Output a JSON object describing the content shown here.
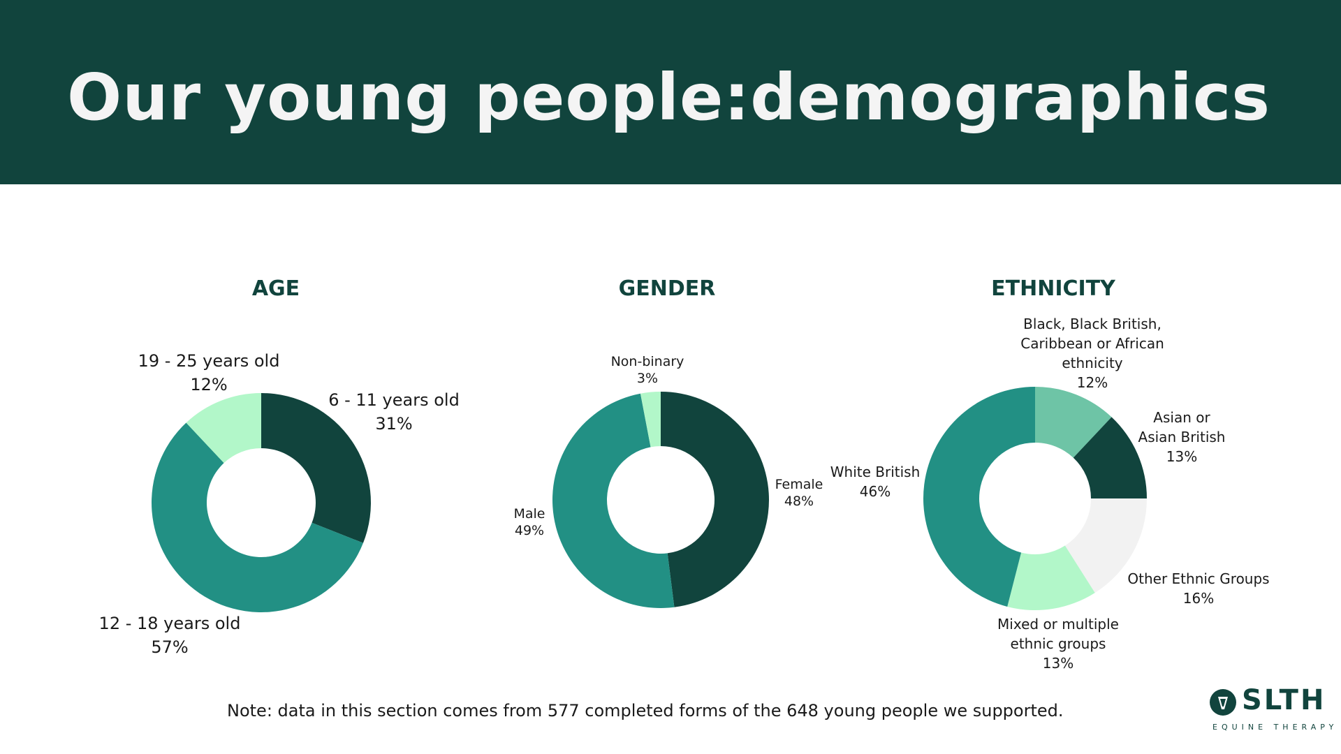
{
  "header": {
    "title": "Our young people:demographics"
  },
  "colors": {
    "header_bg": "#11443d",
    "title": "#f4f4f4",
    "dark": "#11443d",
    "teal": "#229084",
    "mint": "#b2f7c9",
    "sage": "#6ec4a6",
    "light_gray": "#f2f2f2"
  },
  "chart_data": [
    {
      "type": "pie",
      "title": "AGE",
      "slices": [
        {
          "label": "6 - 11 years old",
          "value": 31,
          "display": "31%",
          "color": "#11443d"
        },
        {
          "label": "12 - 18 years old",
          "value": 57,
          "display": "57%",
          "color": "#229084"
        },
        {
          "label": "19 - 25 years old",
          "value": 12,
          "display": "12%",
          "color": "#b2f7c9"
        }
      ]
    },
    {
      "type": "pie",
      "title": "GENDER",
      "slices": [
        {
          "label": "Female",
          "value": 48,
          "display": "48%",
          "color": "#11443d"
        },
        {
          "label": "Male",
          "value": 49,
          "display": "49%",
          "color": "#229084"
        },
        {
          "label": "Non-binary",
          "value": 3,
          "display": "3%",
          "color": "#b2f7c9"
        }
      ]
    },
    {
      "type": "pie",
      "title": "ETHNICITY",
      "slices": [
        {
          "label": "Black, Black British, Caribbean or African ethnicity",
          "lines": [
            "Black, Black British,",
            "Caribbean or African",
            "ethnicity"
          ],
          "value": 12,
          "display": "12%",
          "color": "#6ec4a6"
        },
        {
          "label": "Asian or Asian British",
          "lines": [
            "Asian or",
            "Asian British"
          ],
          "value": 13,
          "display": "13%",
          "color": "#11443d"
        },
        {
          "label": "Other Ethnic Groups",
          "lines": [
            "Other Ethnic Groups"
          ],
          "value": 16,
          "display": "16%",
          "color": "#f2f2f2"
        },
        {
          "label": "Mixed or multiple ethnic groups",
          "lines": [
            "Mixed or multiple",
            "ethnic groups"
          ],
          "value": 13,
          "display": "13%",
          "color": "#b2f7c9"
        },
        {
          "label": "White British",
          "lines": [
            "White British"
          ],
          "value": 46,
          "display": "46%",
          "color": "#229084"
        }
      ]
    }
  ],
  "note": "Note: data in this section comes from 577 completed forms of the 648 young people we supported.",
  "logo": {
    "text": "SLTH",
    "subtitle": "EQUINE THERAPY"
  }
}
